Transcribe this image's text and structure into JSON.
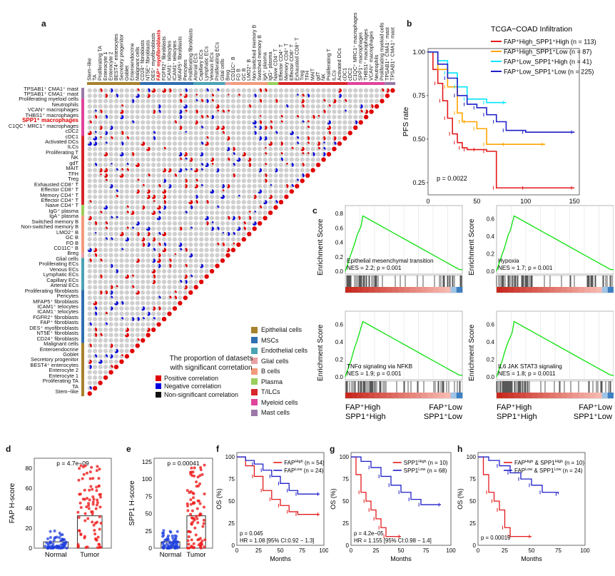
{
  "panels": {
    "a": "a",
    "b": "b",
    "c": "c",
    "d": "d",
    "e": "e",
    "f": "f",
    "g": "g",
    "h": "h"
  },
  "corr": {
    "row_labels": [
      "TPSAB1⁺ CMA1⁺ mast",
      "TPSAB1⁺ CMA1⁻ mast",
      "Proliferating myeloid cells",
      "Neutrophils",
      "VCAN⁺ macrophages",
      "THBS1⁺ macrophages",
      "SPP1⁺ macrophages",
      "C1QC⁺ MRC1⁺ macrophages",
      "cDC2",
      "cDC1",
      "Activated DCs",
      "ILCs",
      "Proliferating T",
      "NK",
      "gdT",
      "MAIT",
      "TFH",
      "Treg",
      "Exhausted CD8⁺ T",
      "Effector CD8⁺ T",
      "Memory CD4⁺ T",
      "Effector CD4⁺ T",
      "Naive CD4⁺ T",
      "IgG⁺ plasma",
      "IgA⁺ plasma",
      "Switched memory B",
      "Non-switched memory B",
      "LMO2⁺ B",
      "GC B",
      "FO B",
      "CD11C⁺ B",
      "Breg",
      "Glial cells",
      "Proliferating ECs",
      "Venous ECs",
      "Lymphatic ECs",
      "Capillary ECs",
      "Arterial ECs",
      "Proliferating fibroblasts",
      "Pericytes",
      "MFAP5⁺ fibroblasts",
      "ICAM1⁺ telocytes",
      "ICAM1⁻ telocytes",
      "FGFR2⁺ fibroblasts",
      "FAP⁺ fibroblasts",
      "DES⁺ myofibroblasts",
      "NT5E⁺ fibroblasts",
      "CD24⁺ fibroblasts",
      "Malignant cells",
      "Enteroendocrine",
      "Goblet",
      "Secretory progenitor",
      "BEST4⁺ enterocytes",
      "Enterocyte 2",
      "Enterocyte 1",
      "Proliferating TA",
      "TA",
      "Stem−like"
    ],
    "highlight_row": "SPP1⁺ macrophages",
    "highlight_col": "FAP⁺ myofibroblasts",
    "col_labels": [
      "Stem−like",
      "TA",
      "Proliferating TA",
      "Enterocyte 1",
      "Enterocyte 2",
      "BEST4⁺ enterocytes",
      "Secretory progenitor",
      "Goblet",
      "Enteroendocrine",
      "Malignant cells",
      "CD24⁺ fibroblasts",
      "NT5E⁺ fibroblasts",
      "DES⁺ myofibroblasts",
      "FAP⁺ myofibroblasts",
      "FGFR2⁺ fibroblasts",
      "ICAM1⁻ telocytes",
      "ICAM1⁺ telocytes",
      "MFAP5⁺ fibroblasts",
      "Pericytes",
      "Proliferating fibroblasts",
      "Arterial ECs",
      "Capillary ECs",
      "Lymphatic ECs",
      "Venous ECs",
      "Proliferating ECs",
      "Glial cells",
      "Breg",
      "CD11C⁺ B",
      "FO B",
      "GC B",
      "LMO2⁺ B",
      "Non-switched memory B",
      "Switched memory B",
      "IgA⁺ plasma",
      "IgG⁺ plasma",
      "Naive CD4⁺ T",
      "Effector CD4⁺ T",
      "Memory CD4⁺ T",
      "Effector CD8⁺ T",
      "Exhausted CD8⁺ T",
      "Treg",
      "TFH",
      "MAIT",
      "gdT",
      "NK",
      "Proliferating T",
      "ILCs",
      "Activated DCs",
      "cDC1",
      "cDC2",
      "C1QC⁺ MRC1⁺ macrophages",
      "SPP1⁺ macrophages",
      "THBS1⁺ macrophages",
      "VCAN⁺ macrophages",
      "Neutrophils",
      "Proliferating myeloid cells",
      "TPSAB1⁺ CMA1⁻ mast",
      "TPSAB1⁺ CMA1⁺ mast"
    ],
    "group_counts": [
      10,
      10,
      6,
      1,
      7,
      2,
      13,
      7,
      2
    ],
    "group_legend": [
      {
        "name": "Epithelial cells",
        "color": "#a6822d"
      },
      {
        "name": "MSCs",
        "color": "#2f6fb2"
      },
      {
        "name": "Endothelial cells",
        "color": "#4aa3b4"
      },
      {
        "name": "Glial cells",
        "color": "#e8a1a3"
      },
      {
        "name": "B cells",
        "color": "#f39a7c"
      },
      {
        "name": "Plasma",
        "color": "#9acd5b"
      },
      {
        "name": "T/ILCs",
        "color": "#d7262a"
      },
      {
        "name": "Myeloid cells",
        "color": "#e0449a"
      },
      {
        "name": "Mast cells",
        "color": "#9b78a8"
      }
    ],
    "prop_title": [
      "The proportion of datasets",
      "with significant corretation"
    ],
    "prop_legend": [
      {
        "label": "Positive correlation",
        "color": "#e00000"
      },
      {
        "label": "Negative correlation",
        "color": "#0000e0"
      },
      {
        "label": "Non-significant correlation",
        "color": "#111111"
      }
    ]
  },
  "km_b": {
    "title": "TCGA−COAD Infiltration",
    "ylabel": "PFS rate",
    "xlabel": "Months",
    "xticks": [
      "0",
      "50",
      "100",
      "150"
    ],
    "yticks": [
      "0.25",
      "0.50",
      "0.75",
      "1.00"
    ],
    "pvalue": "p = 0.0022",
    "legend": [
      {
        "label": "FAP⁺High_SPP1⁺High (n = 113)",
        "color": "#e41a1c"
      },
      {
        "label": "FAP⁺High_SPP1⁺Low (n = 87)",
        "color": "#ffa500"
      },
      {
        "label": "FAP⁺Low_SPP1⁺High (n = 41)",
        "color": "#00e5ff"
      },
      {
        "label": "FAP⁺Low_SPP1⁺Low (n = 225)",
        "color": "#1f1fc8"
      }
    ]
  },
  "chart_data": [
    {
      "type": "line",
      "panel": "b",
      "title": "TCGA−COAD Infiltration",
      "xlabel": "Months",
      "ylabel": "PFS rate",
      "xlim": [
        0,
        155
      ],
      "ylim": [
        0.18,
        1.02
      ],
      "series": [
        {
          "name": "FAP⁺High_SPP1⁺High (n = 113)",
          "x": [
            0,
            5,
            10,
            15,
            20,
            25,
            30,
            35,
            40,
            50,
            60,
            70,
            100,
            150
          ],
          "values": [
            1.0,
            0.9,
            0.82,
            0.72,
            0.62,
            0.53,
            0.48,
            0.45,
            0.44,
            0.44,
            0.43,
            0.22,
            0.22,
            0.22
          ]
        },
        {
          "name": "FAP⁺High_SPP1⁺Low (n = 87)",
          "x": [
            0,
            10,
            20,
            30,
            35,
            40,
            50,
            60,
            80,
            120
          ],
          "values": [
            1.0,
            0.9,
            0.8,
            0.65,
            0.6,
            0.6,
            0.56,
            0.47,
            0.47,
            0.47
          ]
        },
        {
          "name": "FAP⁺Low_SPP1⁺High (n = 41)",
          "x": [
            0,
            10,
            20,
            30,
            40,
            60,
            80
          ],
          "values": [
            1.0,
            0.95,
            0.88,
            0.8,
            0.73,
            0.71,
            0.71
          ]
        },
        {
          "name": "FAP⁺Low_SPP1⁺Low (n = 225)",
          "x": [
            0,
            10,
            20,
            30,
            40,
            50,
            60,
            70,
            80,
            100,
            150
          ],
          "values": [
            1.0,
            0.93,
            0.85,
            0.75,
            0.7,
            0.68,
            0.64,
            0.6,
            0.55,
            0.54,
            0.54
          ]
        }
      ]
    },
    {
      "type": "line",
      "panel": "c",
      "title": "Epithelial mesenchymal transition",
      "ylabel": "Enrichment Score",
      "stat": "NES = 2.2; p = 0.001",
      "yticks": [
        "0.0",
        "0.2",
        "0.4",
        "0.6",
        "0.8"
      ]
    },
    {
      "type": "line",
      "panel": "c",
      "title": "Hypoxia",
      "ylabel": "Enrichment Score",
      "stat": "NES = 1.7; p = 0.001",
      "yticks": [
        "0.0",
        "0.2",
        "0.4",
        "0.6"
      ]
    },
    {
      "type": "line",
      "panel": "c",
      "title": "TNFα signaling via NFKB",
      "ylabel": "Enrichment Score",
      "stat": "NES = 1.9; p = 0.001",
      "yticks": [
        "0.0",
        "0.2",
        "0.4",
        "0.6"
      ]
    },
    {
      "type": "line",
      "panel": "c",
      "title": "IL6 JAK STAT3 signaling",
      "ylabel": "Enrichment Score",
      "stat": "NES = 1.8; p = 0.0011",
      "yticks": [
        "0.0",
        "0.2",
        "0.4",
        "0.6"
      ]
    },
    {
      "type": "scatter",
      "panel": "d",
      "ylabel": "FAP H-score",
      "categories": [
        "Normal",
        "Tumor"
      ],
      "pvalue": "p = 4.7e−09",
      "yticks": [
        "0",
        "20",
        "40",
        "60",
        "80"
      ],
      "ylim": [
        0,
        90
      ]
    },
    {
      "type": "scatter",
      "panel": "e",
      "ylabel": "SPP1 H-score",
      "categories": [
        "Normal",
        "Tumor"
      ],
      "pvalue": "p = 0.00041",
      "yticks": [
        "0",
        "25",
        "50",
        "75",
        "100",
        "125"
      ],
      "ylim": [
        0,
        130
      ]
    },
    {
      "type": "line",
      "panel": "f",
      "ylabel": "OS (%)",
      "xlabel": "Months",
      "xticks": [
        "0",
        "25",
        "50",
        "75",
        "100"
      ],
      "yticks": [
        "0",
        "25",
        "50",
        "75",
        "100"
      ],
      "series": [
        {
          "name": "FAP^High (n = 54)",
          "x": [
            0,
            10,
            20,
            30,
            40,
            50,
            60,
            70,
            95
          ],
          "values": [
            100,
            90,
            78,
            62,
            52,
            45,
            38,
            35,
            35
          ]
        },
        {
          "name": "FAP^Low (n = 24)",
          "x": [
            0,
            10,
            20,
            30,
            40,
            50,
            60,
            70,
            95
          ],
          "values": [
            100,
            96,
            92,
            85,
            78,
            70,
            62,
            58,
            58
          ]
        }
      ],
      "annotations": [
        "p = 0.045",
        "HR = 1.08 [95% CI:0.92 − 1.3]"
      ]
    },
    {
      "type": "line",
      "panel": "g",
      "ylabel": "OS (%)",
      "xlabel": "Months",
      "xticks": [
        "0",
        "25",
        "50",
        "75",
        "100"
      ],
      "yticks": [
        "0",
        "25",
        "50",
        "75",
        "100"
      ],
      "series": [
        {
          "name": "SPP1^High (n = 10)",
          "x": [
            0,
            5,
            10,
            15,
            20,
            25,
            30,
            35,
            50
          ],
          "values": [
            100,
            80,
            60,
            50,
            40,
            30,
            20,
            10,
            10
          ]
        },
        {
          "name": "SPP1^Low (n = 68)",
          "x": [
            0,
            10,
            20,
            30,
            40,
            50,
            60,
            70,
            90
          ],
          "values": [
            100,
            95,
            88,
            78,
            68,
            60,
            52,
            46,
            46
          ]
        }
      ],
      "annotations": [
        "p = 4.2e−05",
        "HR = 1.155 [95% CI:0.98 − 1.4]"
      ]
    },
    {
      "type": "line",
      "panel": "h",
      "ylabel": "OS (%)",
      "xlabel": "Months",
      "xticks": [
        "0",
        "25",
        "50",
        "75",
        "100"
      ],
      "yticks": [
        "0",
        "25",
        "50",
        "75",
        "100"
      ],
      "series": [
        {
          "name": "FAP^High & SPP1^High (n = 10)",
          "x": [
            0,
            5,
            10,
            15,
            20,
            25,
            30,
            50
          ],
          "values": [
            100,
            80,
            60,
            50,
            40,
            20,
            10,
            10
          ]
        },
        {
          "name": "FAP^Low & SPP1^Low (n = 24)",
          "x": [
            0,
            10,
            20,
            30,
            40,
            50,
            60,
            75
          ],
          "values": [
            100,
            96,
            90,
            82,
            75,
            68,
            60,
            58
          ]
        }
      ],
      "annotations": [
        "p = 0.00019"
      ]
    }
  ],
  "gsea": {
    "group_labels": {
      "left1": "FAP⁺High",
      "left2": "SPP1⁺High",
      "right1": "FAP⁺Low",
      "right2": "SPP1⁺Low"
    }
  },
  "box": {
    "d": {
      "ylabel": "FAP H-score",
      "pvalue": "p = 4.7e−09",
      "cat1": "Normal",
      "cat2": "Tumor",
      "yticks": [
        "0",
        "20",
        "40",
        "60",
        "80"
      ]
    },
    "e": {
      "ylabel": "SPP1 H-score",
      "pvalue": "p = 0.00041",
      "cat1": "Normal",
      "cat2": "Tumor",
      "yticks": [
        "0",
        "25",
        "50",
        "75",
        "100",
        "125"
      ]
    }
  },
  "km_small": {
    "f": {
      "legend": [
        [
          "FAP",
          "High",
          " (n = 54)",
          "#e41a1c"
        ],
        [
          "FAP",
          "Low",
          " (n = 24)",
          "#1f1fc8"
        ]
      ],
      "p": "p = 0.045",
      "hr": "HR = 1.08 [95% CI:0.92 − 1.3]",
      "xlabel": "Months",
      "ylabel": "OS (%)",
      "xticks": [
        "0",
        "25",
        "50",
        "75",
        "100"
      ],
      "yticks": [
        "0",
        "25",
        "50",
        "75",
        "100"
      ]
    },
    "g": {
      "legend": [
        [
          "SPP1",
          "High",
          " (n = 10)",
          "#e41a1c"
        ],
        [
          "SPP1",
          "Low",
          " (n = 68)",
          "#1f1fc8"
        ]
      ],
      "p": "p = 4.2e−05",
      "hr": "HR = 1.155 [95% CI:0.98 − 1.4]",
      "xlabel": "Months",
      "ylabel": "OS (%)",
      "xticks": [
        "0",
        "25",
        "50",
        "75",
        "100"
      ],
      "yticks": [
        "0",
        "25",
        "50",
        "75",
        "100"
      ]
    },
    "h": {
      "legend": [
        [
          "FAP",
          "High",
          " & SPP1",
          "#e41a1c",
          "High",
          " (n = 10)"
        ],
        [
          "FAP",
          "Low",
          " & SPP1",
          "#1f1fc8",
          "Low",
          " (n = 24)"
        ]
      ],
      "p": "p = 0.00019",
      "hr": "",
      "xlabel": "Months",
      "ylabel": "OS (%)",
      "xticks": [
        "0",
        "25",
        "50",
        "75",
        "100"
      ],
      "yticks": [
        "0",
        "25",
        "50",
        "75",
        "100"
      ]
    }
  }
}
